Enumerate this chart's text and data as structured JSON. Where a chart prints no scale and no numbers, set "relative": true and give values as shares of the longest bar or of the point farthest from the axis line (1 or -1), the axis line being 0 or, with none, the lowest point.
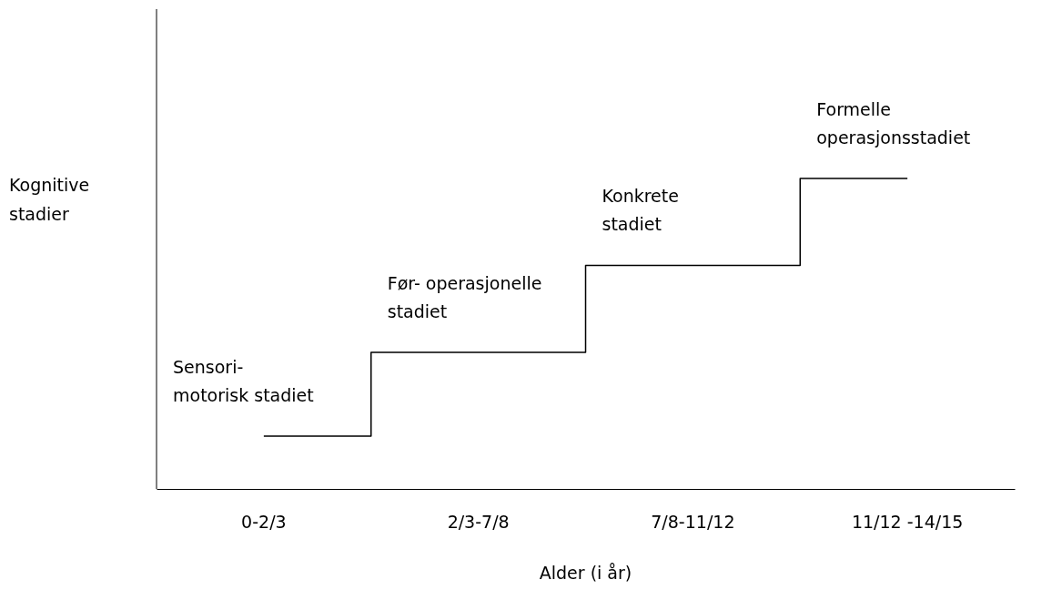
{
  "chart_data": {
    "type": "step",
    "relative": true,
    "xlabel": "Alder (i år)",
    "ylabel": "Kognitive\nstadier",
    "categories": [
      "0-2/3",
      "2/3-7/8",
      "7/8-11/12",
      "11/12 -14/15"
    ],
    "series": [
      {
        "color": "#000000",
        "values": [
          0.17,
          0.44,
          0.72,
          1
        ]
      }
    ],
    "annotations": [
      "Sensori-\nmotorisk stadiet",
      "Før- operasjonelle\nstadiet",
      "Konkrete\nstadiet",
      "Formelle\noperasjonsstadiet"
    ]
  }
}
